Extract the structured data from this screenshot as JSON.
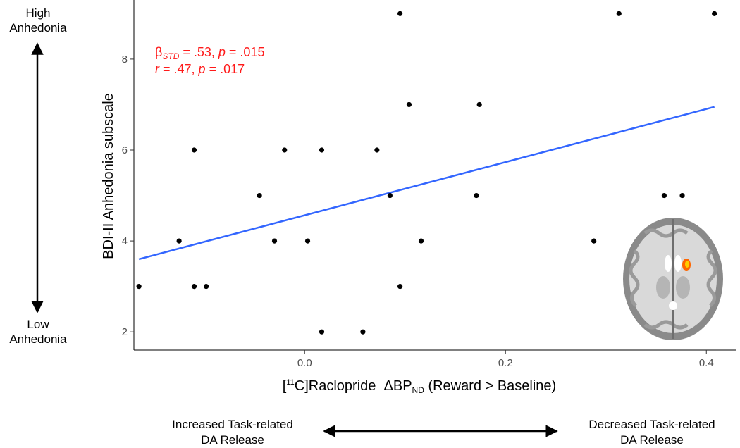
{
  "chart_data": {
    "type": "scatter",
    "xlabel": "[11C]Raclopride ΔBPND (Reward > Baseline)",
    "ylabel": "BDI-II Anhedonia subscale",
    "xlim": [
      -0.17,
      0.43
    ],
    "ylim": [
      1.6,
      9.3
    ],
    "x_ticks": [
      0.0,
      0.2,
      0.4
    ],
    "x_tick_labels": [
      "0.0",
      "0.2",
      "0.4"
    ],
    "y_ticks": [
      2,
      4,
      6,
      8
    ],
    "y_tick_labels": [
      "2",
      "4",
      "6",
      "8"
    ],
    "grid": false,
    "points": [
      {
        "x": -0.165,
        "y": 3
      },
      {
        "x": -0.125,
        "y": 4
      },
      {
        "x": -0.11,
        "y": 6
      },
      {
        "x": -0.11,
        "y": 3
      },
      {
        "x": -0.098,
        "y": 3
      },
      {
        "x": -0.045,
        "y": 5
      },
      {
        "x": -0.03,
        "y": 4
      },
      {
        "x": -0.02,
        "y": 6
      },
      {
        "x": 0.003,
        "y": 4
      },
      {
        "x": 0.017,
        "y": 6
      },
      {
        "x": 0.017,
        "y": 2
      },
      {
        "x": 0.058,
        "y": 2
      },
      {
        "x": 0.072,
        "y": 6
      },
      {
        "x": 0.085,
        "y": 5
      },
      {
        "x": 0.095,
        "y": 9
      },
      {
        "x": 0.095,
        "y": 3
      },
      {
        "x": 0.104,
        "y": 7
      },
      {
        "x": 0.116,
        "y": 4
      },
      {
        "x": 0.171,
        "y": 5
      },
      {
        "x": 0.174,
        "y": 7
      },
      {
        "x": 0.288,
        "y": 4
      },
      {
        "x": 0.313,
        "y": 9
      },
      {
        "x": 0.358,
        "y": 5
      },
      {
        "x": 0.376,
        "y": 5
      },
      {
        "x": 0.408,
        "y": 9
      }
    ],
    "fit_line": {
      "x": [
        -0.165,
        0.408
      ],
      "y": [
        3.6,
        6.95
      ],
      "color": "#3366ff"
    },
    "point_color": "#000000",
    "stats": {
      "line1_beta": "β",
      "line1_sub": "STD",
      "line1_mid": " = .53, ",
      "line1_p": "p",
      "line1_end": " = .015",
      "line2_r": "r",
      "line2_mid": " = .47, ",
      "line2_p": "p",
      "line2_end": " = .017",
      "color": "#ff1a1a"
    },
    "annotations": {
      "top": {
        "line1": "High",
        "line2": "Anhedonia"
      },
      "bottom": {
        "line1": "Low",
        "line2": "Anhedonia"
      },
      "left": {
        "line1": "Increased Task-related",
        "line2": "DA Release"
      },
      "right": {
        "line1": "Decreased Task-related",
        "line2": "DA Release"
      }
    },
    "brain_inset": {
      "icon": "brain-axial-slice-icon",
      "highlight_color": "#ff9900"
    }
  },
  "xlabel_parts": {
    "pre": "[",
    "sup": "11",
    "mid": "C]Raclopride  ",
    "delta": "Δ",
    "bp": "BP",
    "sub": "ND",
    "post": " (Reward > Baseline)"
  }
}
